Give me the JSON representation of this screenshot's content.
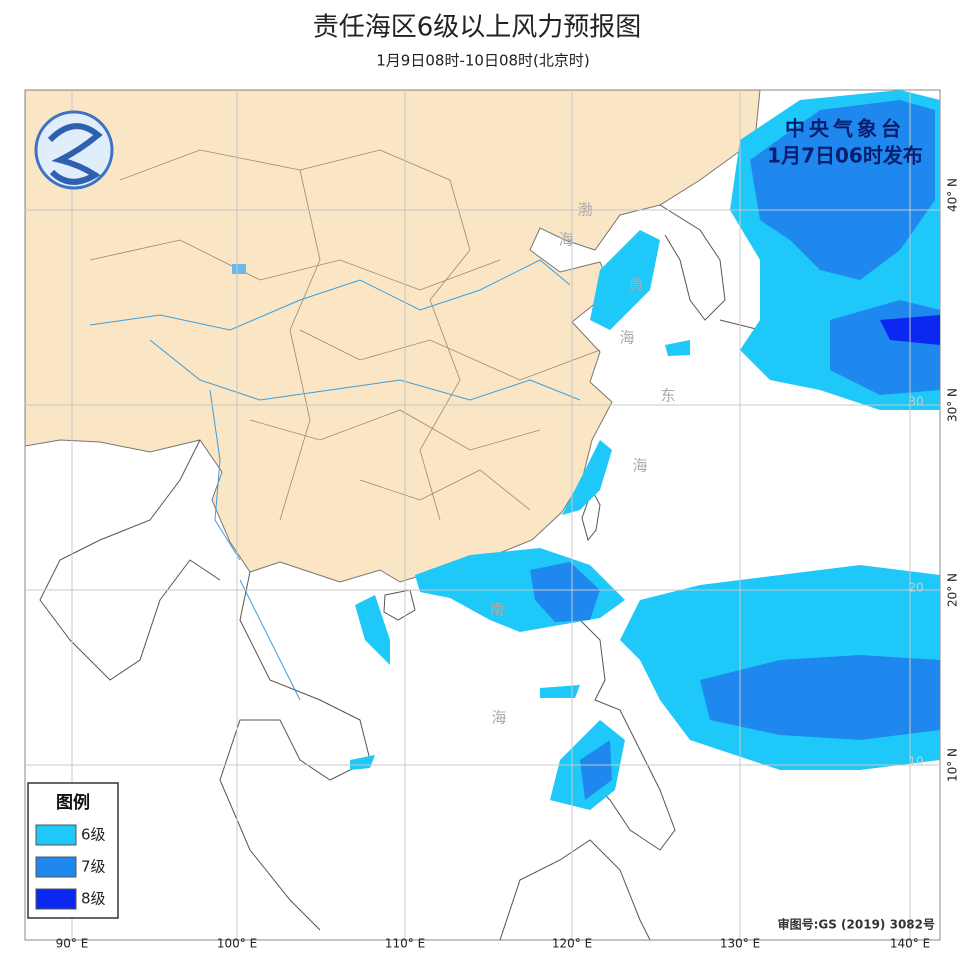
{
  "header": {
    "title": "责任海区6级以上风力预报图",
    "subtitle": "1月9日08时-10日08时(北京时)"
  },
  "issuer": {
    "name": "中央气象台",
    "time": "1月7日06时发布"
  },
  "legend": {
    "title": "图例",
    "items": [
      {
        "label": "6级",
        "color": "#1ec8f8"
      },
      {
        "label": "7级",
        "color": "#1e88ee"
      },
      {
        "label": "8级",
        "color": "#0a28f0"
      }
    ]
  },
  "sea_labels": [
    "渤",
    "海",
    "黄",
    "海",
    "东",
    "海",
    "南",
    "海"
  ],
  "lon_labels": [
    "90° E",
    "100° E",
    "110° E",
    "120° E",
    "130° E",
    "140° E"
  ],
  "lat_labels": [
    "40° N",
    "30° N",
    "20° N",
    "10° N"
  ],
  "grid_values": [
    "30",
    "20",
    "10"
  ],
  "approval": "审图号:GS (2019) 3082号"
}
